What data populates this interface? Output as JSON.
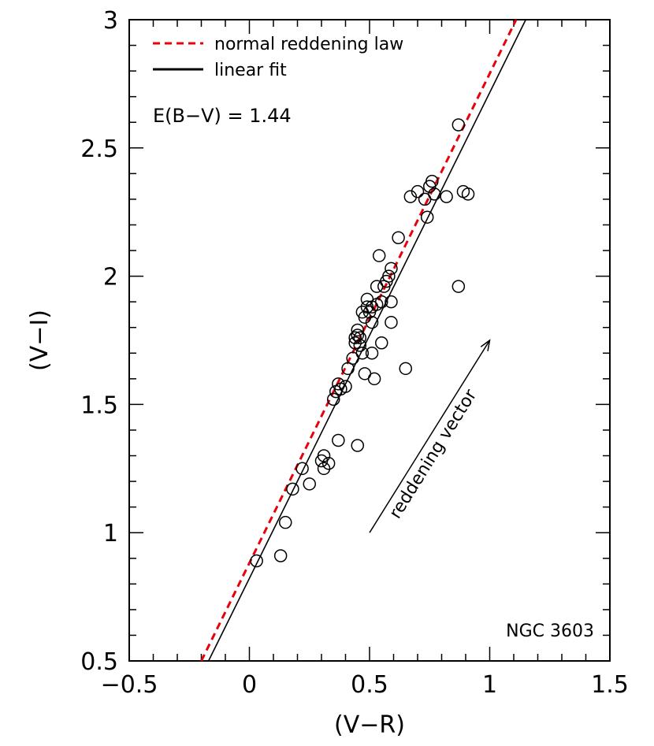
{
  "chart_data": {
    "type": "scatter",
    "xlabel": "(V−R)",
    "ylabel": "(V−I)",
    "xlim": [
      -0.5,
      1.5
    ],
    "ylim": [
      0.5,
      3.0
    ],
    "x_ticks": [
      -0.5,
      0,
      0.5,
      1,
      1.5
    ],
    "x_tick_labels": [
      "−0.5",
      "0",
      "0.5",
      "1",
      "1.5"
    ],
    "y_ticks": [
      0.5,
      1,
      1.5,
      2,
      2.5,
      3
    ],
    "y_tick_labels": [
      "0.5",
      "1",
      "1.5",
      "2",
      "2.5",
      "3"
    ],
    "x_minor_step": 0.1,
    "y_minor_step": 0.1,
    "grid": false,
    "legend_position": "top-left",
    "legend": [
      {
        "label": "normal reddening law",
        "style": "dashed",
        "color": "#e8000b"
      },
      {
        "label": "linear fit",
        "style": "solid",
        "color": "#000000"
      }
    ],
    "annotation": "E(B−V) = 1.44",
    "cluster_label": "NGC 3603",
    "vector": {
      "label": "reddening vector",
      "from": [
        0.5,
        1.0
      ],
      "to": [
        1.0,
        1.75
      ]
    },
    "lines": [
      {
        "name": "normal reddening law",
        "style": "dashed",
        "color": "#e8000b",
        "from": [
          -0.2,
          0.5
        ],
        "to": [
          1.11,
          3.0
        ]
      },
      {
        "name": "linear fit",
        "style": "solid",
        "color": "#000000",
        "from": [
          -0.17,
          0.5
        ],
        "to": [
          1.15,
          3.0
        ]
      }
    ],
    "series": [
      {
        "name": "stars",
        "marker": "open-circle",
        "points": [
          [
            0.03,
            0.89
          ],
          [
            0.13,
            0.91
          ],
          [
            0.15,
            1.04
          ],
          [
            0.18,
            1.17
          ],
          [
            0.22,
            1.25
          ],
          [
            0.25,
            1.19
          ],
          [
            0.3,
            1.28
          ],
          [
            0.31,
            1.3
          ],
          [
            0.31,
            1.25
          ],
          [
            0.33,
            1.27
          ],
          [
            0.37,
            1.36
          ],
          [
            0.45,
            1.34
          ],
          [
            0.35,
            1.52
          ],
          [
            0.36,
            1.55
          ],
          [
            0.37,
            1.58
          ],
          [
            0.38,
            1.56
          ],
          [
            0.4,
            1.57
          ],
          [
            0.41,
            1.64
          ],
          [
            0.43,
            1.68
          ],
          [
            0.44,
            1.74
          ],
          [
            0.44,
            1.76
          ],
          [
            0.45,
            1.77
          ],
          [
            0.45,
            1.79
          ],
          [
            0.46,
            1.73
          ],
          [
            0.46,
            1.76
          ],
          [
            0.47,
            1.7
          ],
          [
            0.48,
            1.62
          ],
          [
            0.48,
            1.84
          ],
          [
            0.47,
            1.86
          ],
          [
            0.49,
            1.88
          ],
          [
            0.49,
            1.91
          ],
          [
            0.5,
            1.86
          ],
          [
            0.51,
            1.88
          ],
          [
            0.51,
            1.82
          ],
          [
            0.52,
            1.6
          ],
          [
            0.51,
            1.7
          ],
          [
            0.53,
            1.89
          ],
          [
            0.55,
            1.9
          ],
          [
            0.55,
            1.74
          ],
          [
            0.56,
            1.96
          ],
          [
            0.57,
            1.98
          ],
          [
            0.58,
            2.0
          ],
          [
            0.59,
            2.03
          ],
          [
            0.59,
            1.9
          ],
          [
            0.59,
            1.82
          ],
          [
            0.53,
            1.96
          ],
          [
            0.54,
            2.08
          ],
          [
            0.62,
            2.15
          ],
          [
            0.65,
            1.64
          ],
          [
            0.67,
            2.31
          ],
          [
            0.7,
            2.33
          ],
          [
            0.73,
            2.3
          ],
          [
            0.74,
            2.23
          ],
          [
            0.75,
            2.35
          ],
          [
            0.76,
            2.37
          ],
          [
            0.77,
            2.32
          ],
          [
            0.82,
            2.31
          ],
          [
            0.87,
            2.59
          ],
          [
            0.87,
            1.96
          ],
          [
            0.89,
            2.33
          ],
          [
            0.91,
            2.32
          ]
        ]
      }
    ]
  }
}
